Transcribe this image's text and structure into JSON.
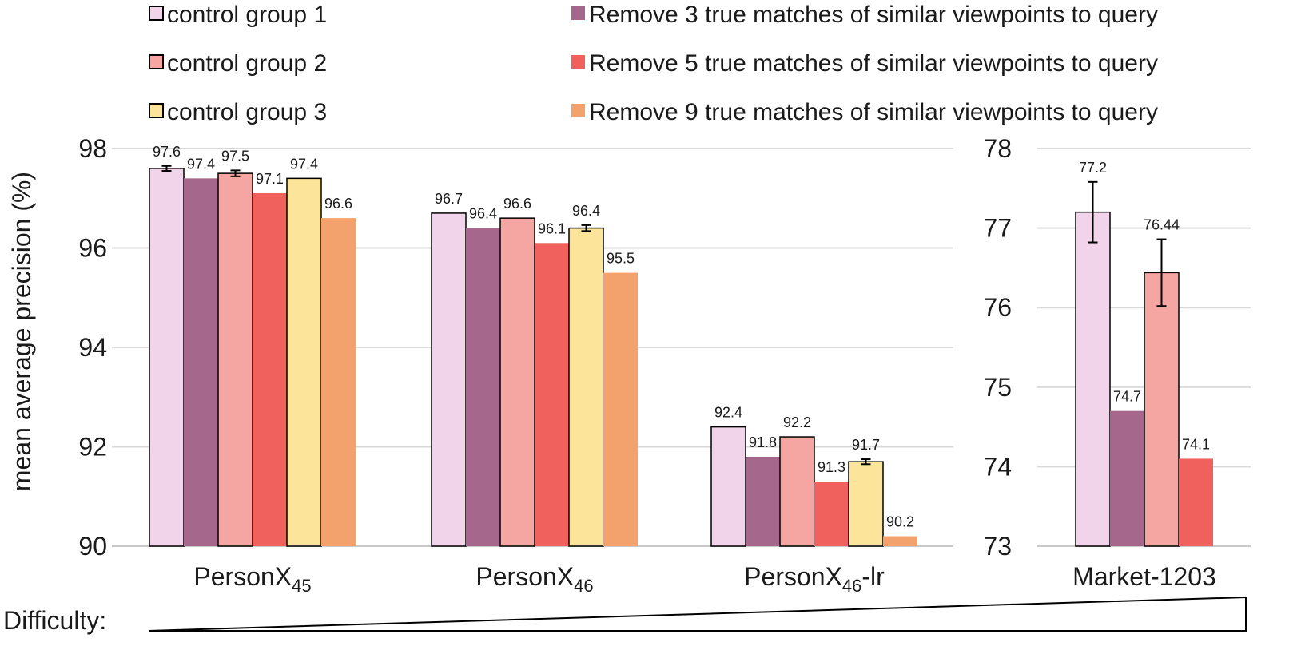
{
  "legend": [
    {
      "label": "control group 1",
      "color": "#f2d4ea"
    },
    {
      "label": "control group 2",
      "color": "#f5a6a3"
    },
    {
      "label": "control group 3",
      "color": "#fce59a"
    },
    {
      "label": "Remove 3 true matches of similar viewpoints to query",
      "color": "#a5688c"
    },
    {
      "label": "Remove 5 true matches of similar viewpoints to query",
      "color": "#f0605d"
    },
    {
      "label": "Remove 9 true matches of similar viewpoints to query",
      "color": "#f3a26e"
    }
  ],
  "difficulty_label": "Difficulty:",
  "chart_data": [
    {
      "type": "bar",
      "ylabel": "mean average precision (%)",
      "ylim": [
        90,
        98
      ],
      "yticks": [
        90,
        92,
        94,
        96,
        98
      ],
      "grid": true,
      "legend_position": "top",
      "categories": [
        {
          "base": "PersonX",
          "sub": "45",
          "suffix": ""
        },
        {
          "base": "PersonX",
          "sub": "46",
          "suffix": ""
        },
        {
          "base": "PersonX",
          "sub": "46",
          "suffix": "-lr"
        }
      ],
      "series": [
        {
          "name": "control group 1",
          "color": "#f2d4ea",
          "outlined": true,
          "values": [
            97.6,
            96.7,
            92.4
          ],
          "labels": [
            "97.6",
            "96.7",
            "92.4"
          ],
          "errors": [
            0.05,
            0.0,
            0.0
          ]
        },
        {
          "name": "Remove 3 true matches of similar viewpoints to query",
          "color": "#a5688c",
          "outlined": false,
          "values": [
            97.4,
            96.4,
            91.8
          ],
          "labels": [
            "97.4",
            "96.4",
            "91.8"
          ],
          "errors": [
            0,
            0,
            0
          ]
        },
        {
          "name": "control group 2",
          "color": "#f5a6a3",
          "outlined": true,
          "values": [
            97.5,
            96.6,
            92.2
          ],
          "labels": [
            "97.5",
            "96.6",
            "92.2"
          ],
          "errors": [
            0.06,
            0.0,
            0.0
          ]
        },
        {
          "name": "Remove 5 true matches of similar viewpoints to query",
          "color": "#f0605d",
          "outlined": false,
          "values": [
            97.1,
            96.1,
            91.3
          ],
          "labels": [
            "97.1",
            "96.1",
            "91.3"
          ],
          "errors": [
            0,
            0,
            0
          ]
        },
        {
          "name": "control group 3",
          "color": "#fce59a",
          "outlined": true,
          "values": [
            97.4,
            96.4,
            91.7
          ],
          "labels": [
            "97.4",
            "96.4",
            "91.7"
          ],
          "errors": [
            0.0,
            0.06,
            0.05
          ]
        },
        {
          "name": "Remove 9 true matches of similar viewpoints to query",
          "color": "#f3a26e",
          "outlined": false,
          "values": [
            96.6,
            95.5,
            90.2
          ],
          "labels": [
            "96.6",
            "95.5",
            "90.2"
          ],
          "errors": [
            0,
            0,
            0
          ]
        }
      ]
    },
    {
      "type": "bar",
      "ylim": [
        73,
        78
      ],
      "yticks": [
        73,
        74,
        75,
        76,
        77,
        78
      ],
      "grid": true,
      "categories": [
        {
          "base": "Market-1203",
          "sub": "",
          "suffix": ""
        }
      ],
      "series": [
        {
          "name": "control group 1",
          "color": "#f2d4ea",
          "outlined": true,
          "values": [
            77.2
          ],
          "labels": [
            "77.2"
          ],
          "errors": [
            0.38
          ]
        },
        {
          "name": "Remove 3 true matches of similar viewpoints to query",
          "color": "#a5688c",
          "outlined": false,
          "values": [
            74.7
          ],
          "labels": [
            "74.7"
          ],
          "errors": [
            0
          ]
        },
        {
          "name": "control group 2",
          "color": "#f5a6a3",
          "outlined": true,
          "values": [
            76.44
          ],
          "labels": [
            "76.44"
          ],
          "errors": [
            0.42
          ]
        },
        {
          "name": "Remove 5 true matches of similar viewpoints to query",
          "color": "#f0605d",
          "outlined": false,
          "values": [
            74.1
          ],
          "labels": [
            "74.1"
          ],
          "errors": [
            0
          ]
        }
      ]
    }
  ]
}
